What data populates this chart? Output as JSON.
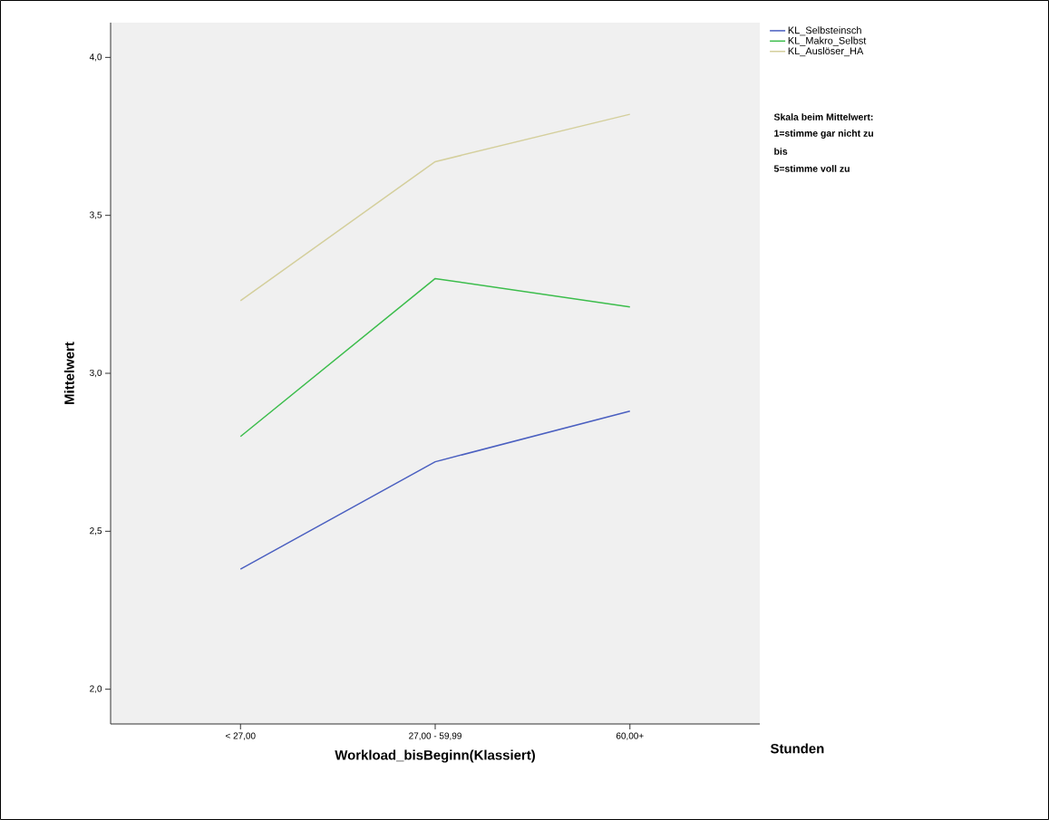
{
  "chart_data": {
    "type": "line",
    "xlabel": "Workload_bisBeginn(Klassiert)",
    "ylabel": "Mittelwert",
    "categories": [
      "< 27,00",
      "27,00 - 59,99",
      "60,00+"
    ],
    "series": [
      {
        "name": "KL_Selbsteinsch",
        "color": "#4a5fc0",
        "values": [
          2.38,
          2.72,
          2.88
        ]
      },
      {
        "name": "KL_Makro_Selbst",
        "color": "#3cbd4c",
        "values": [
          2.8,
          3.3,
          3.21
        ]
      },
      {
        "name": "KL_Auslöser_HA",
        "color": "#d4cf9c",
        "values": [
          3.23,
          3.67,
          3.82
        ]
      }
    ],
    "ylim": [
      1.89,
      4.11
    ],
    "yticks": [
      {
        "value": 2.0,
        "label": "2,0"
      },
      {
        "value": 2.5,
        "label": "2,5"
      },
      {
        "value": 3.0,
        "label": "3,0"
      },
      {
        "value": 3.5,
        "label": "3,5"
      },
      {
        "value": 4.0,
        "label": "4,0"
      }
    ],
    "grid": false,
    "legend": "top right",
    "marker": "none",
    "line_style": "solid",
    "annotations": [
      "Stunden",
      "Skala beim Mittelwert:",
      "1=stimme gar nicht zu",
      "bis",
      "5=stimme voll zu"
    ]
  }
}
